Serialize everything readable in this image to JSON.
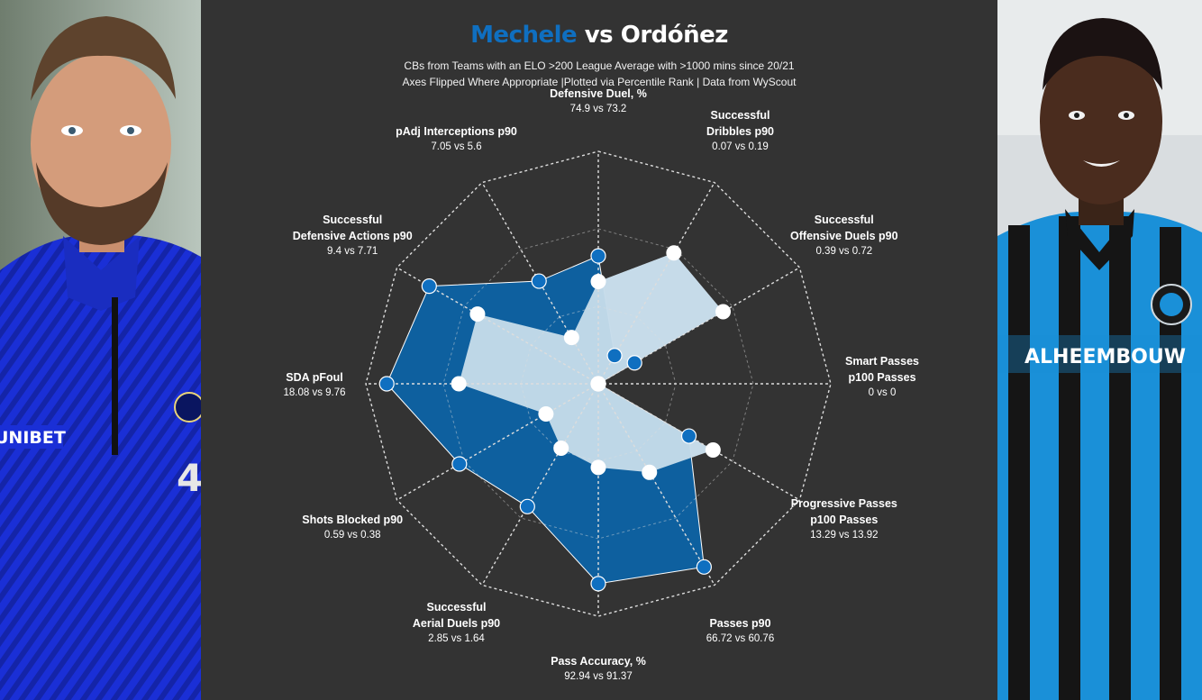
{
  "header": {
    "title_home": "Mechele",
    "title_vs": "vs",
    "title_away": "Ordóñez",
    "subtitle_line1": "CBs from Teams with an ELO >200 League Average with >1000 mins since 20/21",
    "subtitle_line2": "Axes Flipped Where Appropriate |Plotted via Percentile Rank | Data from WyScout"
  },
  "colors": {
    "background": "#333333",
    "home": "#0f6fc0",
    "home_fill": "#0e609f",
    "away_fill": "#c6dcea",
    "away_outside": "#cccccc",
    "grid": "#dddddd"
  },
  "photos": {
    "left": {
      "shirt_text": "UNIBET",
      "number": "4"
    },
    "right": {
      "shirt_text": "ALHEEMBOUW"
    }
  },
  "chart_data": {
    "type": "radar",
    "scale": "percentile rank",
    "rlim": [
      0,
      100
    ],
    "series": [
      {
        "name": "Mechele",
        "percentiles": [
          55,
          14,
          18,
          0,
          45,
          91,
          86,
          61,
          69,
          91,
          84,
          51
        ]
      },
      {
        "name": "Ordóñez",
        "percentiles": [
          44,
          65,
          62,
          0,
          57,
          44,
          36,
          32,
          26,
          60,
          60,
          23
        ]
      }
    ],
    "parameters": [
      {
        "name": "Defensive Duel, %",
        "lines": [
          "Defensive Duel, %"
        ],
        "values": "74.9 vs 73.2"
      },
      {
        "name": "Successful Dribbles p90",
        "lines": [
          "Successful",
          "Dribbles p90"
        ],
        "values": "0.07 vs 0.19"
      },
      {
        "name": "Successful Offensive Duels p90",
        "lines": [
          "Successful",
          "Offensive Duels p90"
        ],
        "values": "0.39 vs 0.72"
      },
      {
        "name": "Smart Passes p100 Passes",
        "lines": [
          "Smart Passes",
          "p100 Passes"
        ],
        "values": "0 vs 0"
      },
      {
        "name": "Progressive Passes p100 Passes",
        "lines": [
          "Progressive Passes",
          "p100 Passes"
        ],
        "values": "13.29 vs 13.92"
      },
      {
        "name": "Passes p90",
        "lines": [
          "Passes p90"
        ],
        "values": "66.72 vs 60.76"
      },
      {
        "name": "Pass Accuracy, %",
        "lines": [
          "Pass Accuracy, %"
        ],
        "values": "92.94 vs 91.37"
      },
      {
        "name": "Successful Aerial Duels p90",
        "lines": [
          "Successful",
          "Aerial Duels p90"
        ],
        "values": "2.85 vs 1.64"
      },
      {
        "name": "Shots Blocked p90",
        "lines": [
          "Shots Blocked p90"
        ],
        "values": "0.59 vs 0.38"
      },
      {
        "name": "SDA pFoul",
        "lines": [
          "SDA pFoul"
        ],
        "values": "18.08 vs 9.76"
      },
      {
        "name": "Successful Defensive Actions p90",
        "lines": [
          "Successful",
          "Defensive Actions p90"
        ],
        "values": "9.4 vs 7.71"
      },
      {
        "name": "pAdj Interceptions p90",
        "lines": [
          "pAdj Interceptions p90"
        ],
        "values": "7.05 vs 5.6"
      }
    ]
  }
}
